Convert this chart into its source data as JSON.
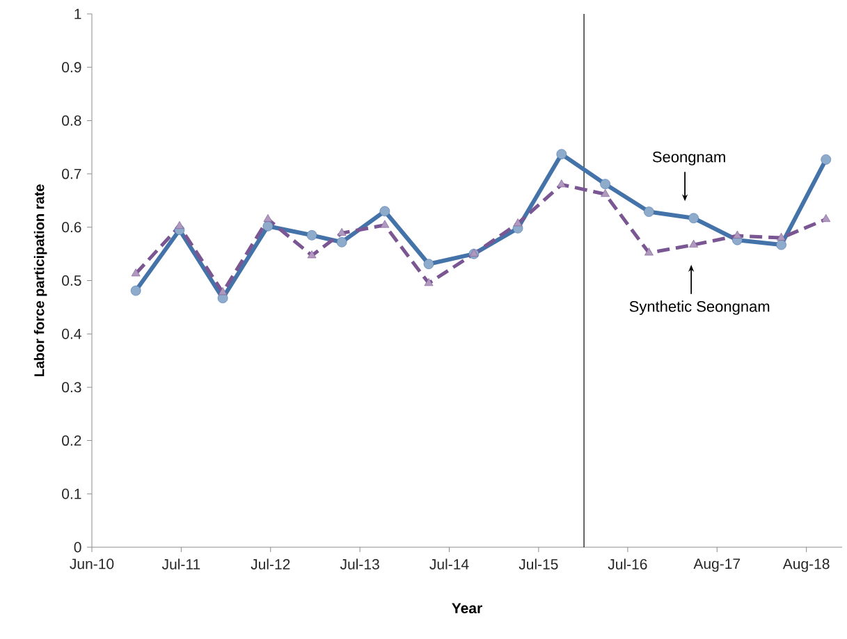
{
  "chart_data": {
    "type": "line",
    "xlabel": "Year",
    "ylabel": "Labor force participation rate",
    "x": [
      "2010-12-29",
      "2011-06-28",
      "2011-12-24",
      "2012-06-28",
      "2012-12-27",
      "2013-04-30",
      "2013-10-25",
      "2014-04-25",
      "2014-10-29",
      "2015-04-29",
      "2015-10-27",
      "2016-04-25",
      "2016-10-23",
      "2017-04-26",
      "2017-10-24",
      "2018-04-24",
      "2018-10-26"
    ],
    "series": [
      {
        "color": "#4473aa",
        "marker": "circle",
        "line_style": "solid",
        "values": [
          0.481,
          0.595,
          0.467,
          0.602,
          0.585,
          0.572,
          0.63,
          0.531,
          0.55,
          0.598,
          0.737,
          0.681,
          0.629,
          0.617,
          0.576,
          0.567,
          0.727
        ]
      },
      {
        "color": "#7a5693",
        "marker": "triangle",
        "line_style": "dashed",
        "values": [
          0.513,
          0.602,
          0.478,
          0.615,
          0.547,
          0.589,
          0.604,
          0.495,
          0.55,
          0.607,
          0.68,
          0.662,
          0.552,
          0.567,
          0.584,
          0.58,
          0.615
        ]
      }
    ],
    "xlim": [
      "2010-06-30",
      "2019-01-01"
    ],
    "ylim": [
      0,
      1
    ],
    "xticks": [
      {
        "value": "2010-06-30",
        "label": "Jun-10"
      },
      {
        "value": "2011-07-05",
        "label": "Jul-11"
      },
      {
        "value": "2012-07-09",
        "label": "Jul-12"
      },
      {
        "value": "2013-07-14",
        "label": "Jul-13"
      },
      {
        "value": "2014-07-19",
        "label": "Jul-14"
      },
      {
        "value": "2015-07-24",
        "label": "Jul-15"
      },
      {
        "value": "2016-07-27",
        "label": "Jul-16"
      },
      {
        "value": "2017-08-01",
        "label": "Aug-17"
      },
      {
        "value": "2018-08-06",
        "label": "Aug-18"
      }
    ],
    "yticks": [
      0,
      0.1,
      0.2,
      0.3,
      0.4,
      0.5,
      0.6,
      0.7,
      0.8,
      0.9,
      1
    ],
    "ref_lines": [
      {
        "axis": "x",
        "value": "2016-01-28",
        "color": "#000000"
      }
    ],
    "annotations": [
      "Seongnam",
      "Synthetic Seongnam"
    ],
    "grid": false
  }
}
